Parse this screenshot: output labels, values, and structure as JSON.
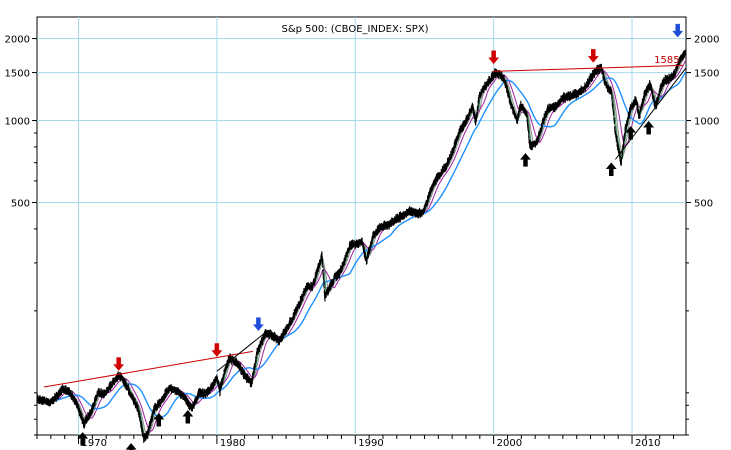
{
  "chart_data": {
    "type": "line",
    "title": "S&p 500: (CBOE_INDEX: SPX)",
    "scale": "log",
    "x_range": [
      1967.0,
      2013.9
    ],
    "y_range": [
      70,
      2400
    ],
    "grid": true,
    "colors": {
      "price": "#000000",
      "ma_short": "#2e8b57",
      "ma_mid": "#8a8a8a",
      "ma_long": "#a020a0",
      "ma_very_long": "#1e90ff",
      "resistance": "#d00000",
      "trend": "#000000",
      "arrow_top": "#d00000",
      "arrow_peak_breakout": "#1f4fd8",
      "arrow_bottom": "#000000"
    },
    "x_ticks": [
      1970,
      1980,
      1990,
      2000,
      2010
    ],
    "y_ticks": [
      500,
      1000,
      1500,
      2000
    ],
    "price_points": [
      [
        1967.0,
        95
      ],
      [
        1967.5,
        94
      ],
      [
        1968.0,
        92
      ],
      [
        1968.5,
        98
      ],
      [
        1968.9,
        104
      ],
      [
        1969.4,
        100
      ],
      [
        1969.9,
        90
      ],
      [
        1970.4,
        77
      ],
      [
        1970.9,
        85
      ],
      [
        1971.4,
        100
      ],
      [
        1971.9,
        99
      ],
      [
        1972.5,
        110
      ],
      [
        1972.95,
        116
      ],
      [
        1973.5,
        106
      ],
      [
        1973.9,
        96
      ],
      [
        1974.3,
        88
      ],
      [
        1974.7,
        68
      ],
      [
        1974.95,
        70
      ],
      [
        1975.5,
        88
      ],
      [
        1975.9,
        92
      ],
      [
        1976.5,
        103
      ],
      [
        1976.9,
        104
      ],
      [
        1977.5,
        98
      ],
      [
        1977.9,
        92
      ],
      [
        1978.2,
        88
      ],
      [
        1978.7,
        100
      ],
      [
        1979.2,
        99
      ],
      [
        1979.7,
        106
      ],
      [
        1980.0,
        114
      ],
      [
        1980.2,
        101
      ],
      [
        1980.6,
        122
      ],
      [
        1980.9,
        134
      ],
      [
        1981.5,
        128
      ],
      [
        1981.9,
        118
      ],
      [
        1982.5,
        108
      ],
      [
        1982.9,
        140
      ],
      [
        1983.5,
        165
      ],
      [
        1983.9,
        164
      ],
      [
        1984.5,
        155
      ],
      [
        1984.9,
        167
      ],
      [
        1985.5,
        190
      ],
      [
        1985.9,
        210
      ],
      [
        1986.5,
        245
      ],
      [
        1986.9,
        245
      ],
      [
        1987.6,
        320
      ],
      [
        1987.8,
        225
      ],
      [
        1988.5,
        265
      ],
      [
        1988.9,
        277
      ],
      [
        1989.6,
        345
      ],
      [
        1989.9,
        352
      ],
      [
        1990.5,
        360
      ],
      [
        1990.8,
        305
      ],
      [
        1991.3,
        380
      ],
      [
        1991.9,
        410
      ],
      [
        1992.5,
        415
      ],
      [
        1992.9,
        436
      ],
      [
        1993.5,
        448
      ],
      [
        1993.9,
        465
      ],
      [
        1994.5,
        455
      ],
      [
        1994.9,
        460
      ],
      [
        1995.5,
        560
      ],
      [
        1995.9,
        615
      ],
      [
        1996.5,
        670
      ],
      [
        1996.9,
        740
      ],
      [
        1997.5,
        900
      ],
      [
        1997.9,
        970
      ],
      [
        1998.5,
        1130
      ],
      [
        1998.7,
        980
      ],
      [
        1998.95,
        1230
      ],
      [
        1999.5,
        1360
      ],
      [
        1999.95,
        1460
      ],
      [
        2000.2,
        1500
      ],
      [
        2000.7,
        1440
      ],
      [
        2000.95,
        1320
      ],
      [
        2001.2,
        1160
      ],
      [
        2001.7,
        1000
      ],
      [
        2001.95,
        1140
      ],
      [
        2002.4,
        1050
      ],
      [
        2002.6,
        820
      ],
      [
        2002.8,
        800
      ],
      [
        2003.2,
        850
      ],
      [
        2003.6,
        1000
      ],
      [
        2003.95,
        1110
      ],
      [
        2004.5,
        1120
      ],
      [
        2004.95,
        1210
      ],
      [
        2005.5,
        1230
      ],
      [
        2005.95,
        1250
      ],
      [
        2006.5,
        1300
      ],
      [
        2006.95,
        1420
      ],
      [
        2007.4,
        1520
      ],
      [
        2007.8,
        1560
      ],
      [
        2008.1,
        1350
      ],
      [
        2008.5,
        1280
      ],
      [
        2008.8,
        900
      ],
      [
        2009.2,
        700
      ],
      [
        2009.5,
        920
      ],
      [
        2009.9,
        1110
      ],
      [
        2010.3,
        1190
      ],
      [
        2010.5,
        1030
      ],
      [
        2010.9,
        1250
      ],
      [
        2011.3,
        1360
      ],
      [
        2011.7,
        1120
      ],
      [
        2011.95,
        1260
      ],
      [
        2012.3,
        1400
      ],
      [
        2012.8,
        1430
      ],
      [
        2013.1,
        1500
      ],
      [
        2013.4,
        1640
      ],
      [
        2013.7,
        1720
      ],
      [
        2013.9,
        1800
      ]
    ],
    "ma_periods_weeks": [
      10,
      20,
      40,
      100
    ],
    "resistance_lines": [
      {
        "x": [
          1967.5,
          1982.6
        ],
        "y": [
          105,
          142
        ]
      },
      {
        "x": [
          1999.95,
          2013.7
        ],
        "y": [
          1515,
          1595
        ]
      }
    ],
    "trend_lines": [
      {
        "x": [
          1980.0,
          1983.6
        ],
        "y": [
          120,
          168
        ]
      },
      {
        "x": [
          2008.8,
          2013.9
        ],
        "y": [
          720,
          1560
        ]
      }
    ],
    "annotations": [
      {
        "text": "1585",
        "x": 2011.6,
        "y": 1585
      }
    ],
    "arrows": [
      {
        "kind": "top",
        "direction": "down",
        "x": 1972.9,
        "y": 127
      },
      {
        "kind": "top",
        "direction": "down",
        "x": 1980.0,
        "y": 143
      },
      {
        "kind": "peak",
        "direction": "down",
        "x": 1983.0,
        "y": 178
      },
      {
        "kind": "top",
        "direction": "down",
        "x": 2000.0,
        "y": 1700
      },
      {
        "kind": "top",
        "direction": "down",
        "x": 2007.2,
        "y": 1720
      },
      {
        "kind": "peak",
        "direction": "down",
        "x": 2013.3,
        "y": 2130
      },
      {
        "kind": "bottom",
        "direction": "up",
        "x": 1970.3,
        "y": 68
      },
      {
        "kind": "bottom",
        "direction": "up",
        "x": 1973.8,
        "y": 62
      },
      {
        "kind": "bottom",
        "direction": "up",
        "x": 1975.8,
        "y": 80
      },
      {
        "kind": "bottom",
        "direction": "up",
        "x": 1977.9,
        "y": 82
      },
      {
        "kind": "bottom",
        "direction": "up",
        "x": 2002.3,
        "y": 720
      },
      {
        "kind": "bottom",
        "direction": "up",
        "x": 2008.5,
        "y": 665
      },
      {
        "kind": "bottom",
        "direction": "up",
        "x": 2009.9,
        "y": 905
      },
      {
        "kind": "bottom",
        "direction": "up",
        "x": 2011.2,
        "y": 945
      }
    ]
  }
}
